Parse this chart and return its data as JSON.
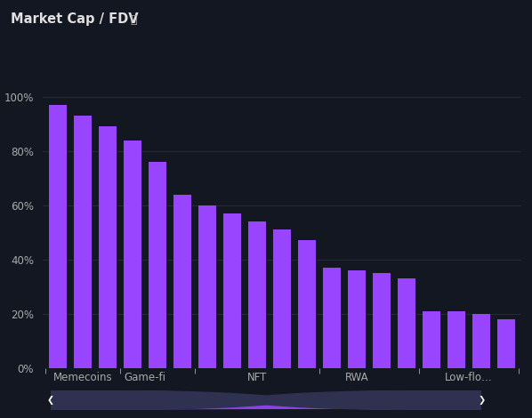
{
  "title": "Market Cap / FDV",
  "background_color": "#131722",
  "bar_color": "#9945FF",
  "grid_color": "#2a2e39",
  "text_color": "#aaaaaa",
  "title_color": "#e0e0e0",
  "categories": [
    "Memecoins",
    "Game-fi",
    "NFT",
    "RWA",
    "Low-flo…"
  ],
  "cat_positions": [
    1,
    3.5,
    8,
    12,
    16.5
  ],
  "values": [
    97,
    93,
    89,
    84,
    76,
    64,
    60,
    57,
    54,
    51,
    47,
    37,
    36,
    35,
    33,
    21,
    21,
    20,
    18
  ],
  "yticks": [
    0,
    20,
    40,
    60,
    80,
    100
  ],
  "ytick_labels": [
    "0%",
    "20%",
    "40%",
    "60%",
    "80%",
    "100%"
  ],
  "ylim": [
    0,
    108
  ],
  "scrollbar_bg": "#1a1d2e",
  "scrollbar_color": "#9945FF",
  "arrow_bg": "#2e3250"
}
